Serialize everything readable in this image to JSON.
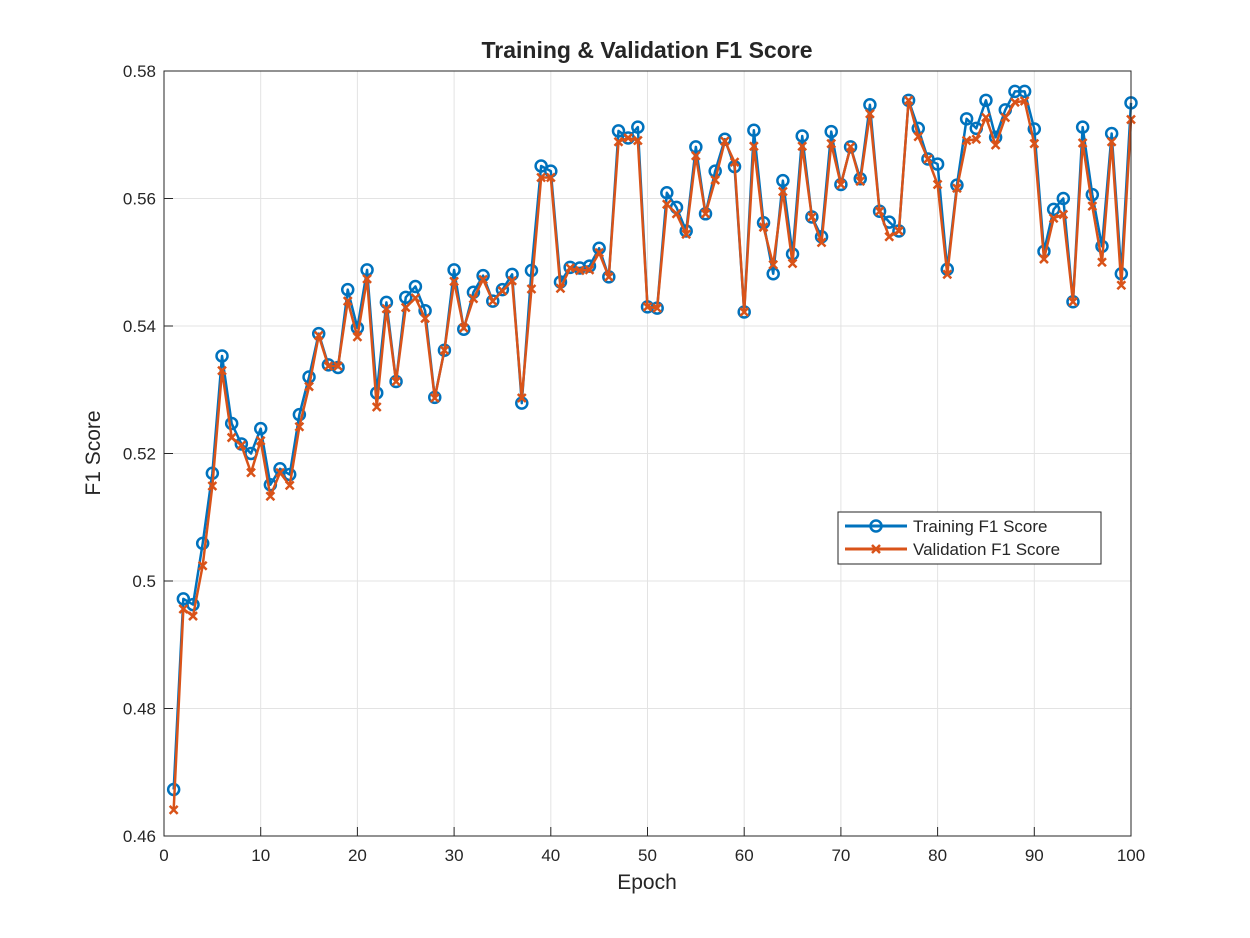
{
  "chart_data": {
    "type": "line",
    "title": "Training & Validation F1 Score",
    "xlabel": "Epoch",
    "ylabel": "F1 Score",
    "xlim": [
      0,
      100
    ],
    "ylim": [
      0.46,
      0.58
    ],
    "xticks": [
      0,
      10,
      20,
      30,
      40,
      50,
      60,
      70,
      80,
      90,
      100
    ],
    "yticks": [
      0.46,
      0.48,
      0.5,
      0.52,
      0.54,
      0.56,
      0.58
    ],
    "ytick_labels": [
      "0.46",
      "0.48",
      "0.5",
      "0.52",
      "0.54",
      "0.56",
      "0.58"
    ],
    "grid": true,
    "legend_location": "east",
    "x": [
      1,
      2,
      3,
      4,
      5,
      6,
      7,
      8,
      9,
      10,
      11,
      12,
      13,
      14,
      15,
      16,
      17,
      18,
      19,
      20,
      21,
      22,
      23,
      24,
      25,
      26,
      27,
      28,
      29,
      30,
      31,
      32,
      33,
      34,
      35,
      36,
      37,
      38,
      39,
      40,
      41,
      42,
      43,
      44,
      45,
      46,
      47,
      48,
      49,
      50,
      51,
      52,
      53,
      54,
      55,
      56,
      57,
      58,
      59,
      60,
      61,
      62,
      63,
      64,
      65,
      66,
      67,
      68,
      69,
      70,
      71,
      72,
      73,
      74,
      75,
      76,
      77,
      78,
      79,
      80,
      81,
      82,
      83,
      84,
      85,
      86,
      87,
      88,
      89,
      90,
      91,
      92,
      93,
      94,
      95,
      96,
      97,
      98,
      99,
      100
    ],
    "series": [
      {
        "name": "Training F1 Score",
        "color": "#0072BD",
        "marker": "circle",
        "values": [
          0.4673,
          0.4972,
          0.4963,
          0.5059,
          0.5169,
          0.5353,
          0.5247,
          0.5215,
          0.52,
          0.5239,
          0.5151,
          0.5176,
          0.5167,
          0.5261,
          0.532,
          0.5388,
          0.5339,
          0.5335,
          0.5457,
          0.5397,
          0.5488,
          0.5295,
          0.5437,
          0.5313,
          0.5445,
          0.5462,
          0.5424,
          0.5288,
          0.5362,
          0.5488,
          0.5395,
          0.5453,
          0.5479,
          0.5439,
          0.5457,
          0.5481,
          0.5279,
          0.5487,
          0.5651,
          0.5643,
          0.5469,
          0.5492,
          0.5491,
          0.5494,
          0.5522,
          0.5477,
          0.5706,
          0.5695,
          0.5712,
          0.543,
          0.5428,
          0.5609,
          0.5586,
          0.5549,
          0.5681,
          0.5576,
          0.5643,
          0.5693,
          0.565,
          0.5422,
          0.5707,
          0.5562,
          0.5482,
          0.5628,
          0.5513,
          0.5698,
          0.5571,
          0.554,
          0.5705,
          0.5622,
          0.5681,
          0.5631,
          0.5747,
          0.558,
          0.5563,
          0.5549,
          0.5754,
          0.571,
          0.5662,
          0.5654,
          0.5489,
          0.5621,
          0.5725,
          0.571,
          0.5754,
          0.5696,
          0.5739,
          0.5768,
          0.5768,
          0.5709,
          0.5517,
          0.5583,
          0.56,
          0.5438,
          0.5712,
          0.5606,
          0.5525,
          0.5702,
          0.5482,
          0.575
        ]
      },
      {
        "name": "Validation F1 Score",
        "color": "#D95319",
        "marker": "x",
        "values": [
          0.4641,
          0.4956,
          0.4945,
          0.5024,
          0.5149,
          0.533,
          0.5225,
          0.5213,
          0.517,
          0.522,
          0.5133,
          0.517,
          0.515,
          0.5242,
          0.5305,
          0.5385,
          0.5337,
          0.5337,
          0.5439,
          0.5383,
          0.5474,
          0.5273,
          0.5427,
          0.5313,
          0.5429,
          0.5444,
          0.5412,
          0.5287,
          0.5362,
          0.547,
          0.5397,
          0.5443,
          0.5473,
          0.5439,
          0.5455,
          0.5471,
          0.5287,
          0.5458,
          0.5633,
          0.5633,
          0.5459,
          0.5491,
          0.5487,
          0.5488,
          0.5515,
          0.5477,
          0.5689,
          0.5695,
          0.5691,
          0.543,
          0.5428,
          0.5591,
          0.5576,
          0.5544,
          0.5667,
          0.5576,
          0.5629,
          0.569,
          0.5657,
          0.5422,
          0.5682,
          0.5555,
          0.5496,
          0.5611,
          0.5498,
          0.5682,
          0.5571,
          0.5531,
          0.5686,
          0.5622,
          0.5681,
          0.5627,
          0.5733,
          0.558,
          0.554,
          0.5549,
          0.5754,
          0.5697,
          0.5662,
          0.5622,
          0.5481,
          0.5616,
          0.5691,
          0.5693,
          0.5727,
          0.5684,
          0.5727,
          0.5751,
          0.5753,
          0.5686,
          0.5505,
          0.5569,
          0.5575,
          0.5438,
          0.5687,
          0.5588,
          0.55,
          0.5689,
          0.5464,
          0.5724
        ]
      }
    ]
  }
}
